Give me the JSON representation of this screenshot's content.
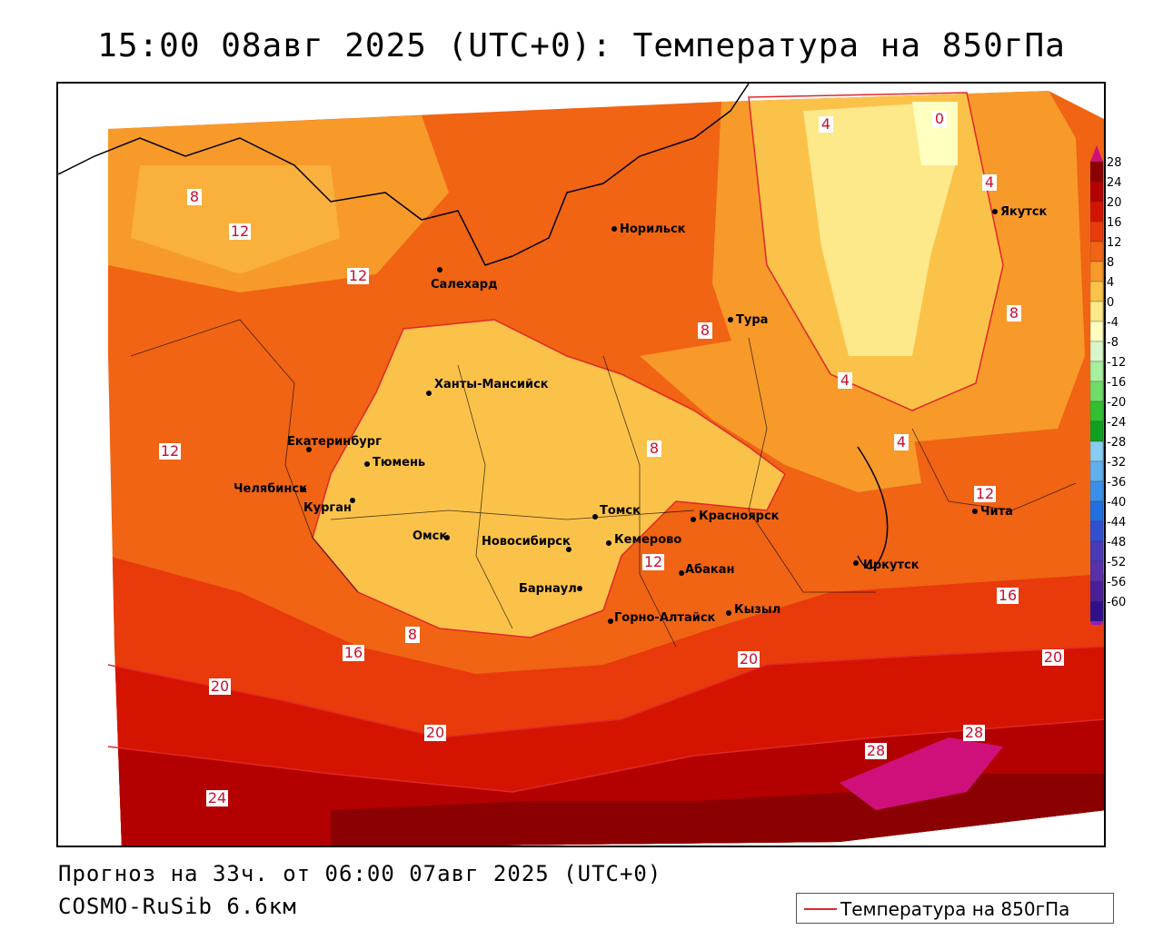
{
  "title": "15:00 08авг 2025 (UTC+0): Температура на 850гПа",
  "forecast_line": "Прогноз на 33ч. от 06:00 07авг 2025 (UTC+0)",
  "model_line": "COSMO-RuSib 6.6км",
  "legend": {
    "label": "Температура на 850гПа",
    "line_color": "#e0282a"
  },
  "colorbar": {
    "ticks": [
      "28",
      "24",
      "20",
      "16",
      "12",
      "8",
      "4",
      "0",
      "-4",
      "-8",
      "-12",
      "-16",
      "-20",
      "-24",
      "-28",
      "-32",
      "-36",
      "-40",
      "-44",
      "-48",
      "-52",
      "-56",
      "-60"
    ],
    "colors": [
      "#8b0000",
      "#b30000",
      "#d41400",
      "#e83a0a",
      "#f06414",
      "#f79a2a",
      "#fbc24a",
      "#fde88a",
      "#ffffc0",
      "#d8f7c8",
      "#a8efa0",
      "#6fdc6a",
      "#30c030",
      "#10a020",
      "#88ccf0",
      "#60b0f0",
      "#3a90e8",
      "#2070e0",
      "#3050d0",
      "#4a3ab8",
      "#5830a8",
      "#4a2098",
      "#30108a"
    ],
    "top_arrow": "#d0107a",
    "bottom_arrow": "#8a20c0"
  },
  "cities": [
    {
      "name": "Норильск",
      "x": 128.3,
      "y": 52.1
    },
    {
      "name": "Якутск",
      "x": 1.0,
      "y": 1.0
    },
    {
      "name": "Салехард",
      "x": 0.0,
      "y": 0.0
    },
    {
      "name": "Тура",
      "x": 0.0,
      "y": 0.0
    },
    {
      "name": "Ханты-Мансийск",
      "x": 0.0,
      "y": 0.0
    },
    {
      "name": "Екатеринбург",
      "x": 0.0,
      "y": 0.0
    },
    {
      "name": "Тюмень",
      "x": 0.0,
      "y": 0.0
    },
    {
      "name": "Челябинск",
      "x": 0.0,
      "y": 0.0
    },
    {
      "name": "Курган",
      "x": 0.0,
      "y": 0.0
    },
    {
      "name": "Омск",
      "x": 0.0,
      "y": 0.0
    },
    {
      "name": "Новосибирск",
      "x": 0.0,
      "y": 0.0
    },
    {
      "name": "Томск",
      "x": 0.0,
      "y": 0.0
    },
    {
      "name": "Кемерово",
      "x": 0.0,
      "y": 0.0
    },
    {
      "name": "Красноярск",
      "x": 0.0,
      "y": 0.0
    },
    {
      "name": "Барнаул",
      "x": 0.0,
      "y": 0.0
    },
    {
      "name": "Абакан",
      "x": 0.0,
      "y": 0.0
    },
    {
      "name": "Горно-Алтайск",
      "x": 0.0,
      "y": 0.0
    },
    {
      "name": "Кызыл",
      "x": 0.0,
      "y": 0.0
    },
    {
      "name": "Иркутск",
      "x": 0.0,
      "y": 0.0
    },
    {
      "name": "Чита",
      "x": 0.0,
      "y": 0.0
    }
  ],
  "isotherm_labels": [
    "0",
    "4",
    "8",
    "12",
    "16",
    "20",
    "24",
    "28"
  ]
}
